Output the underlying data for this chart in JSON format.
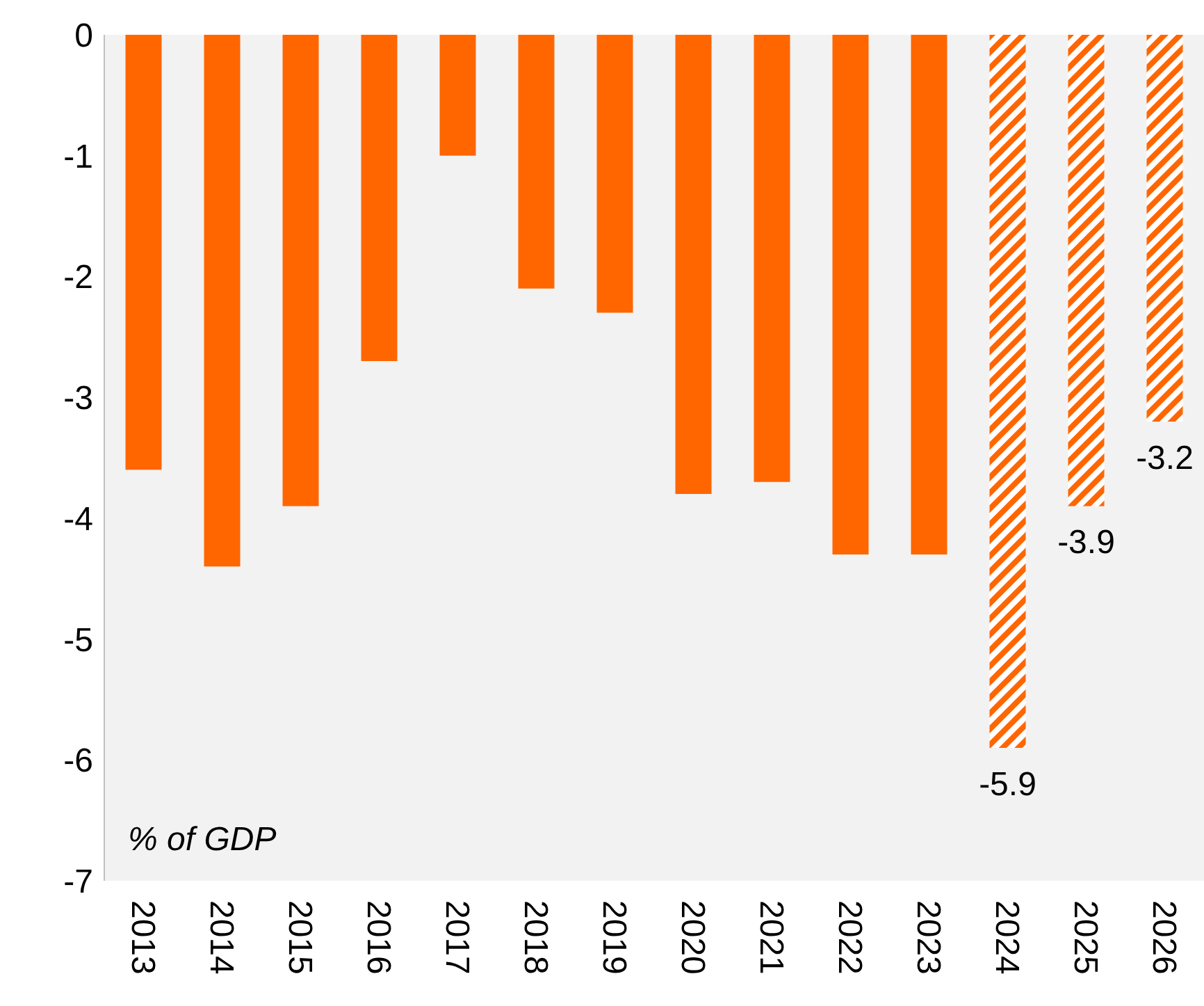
{
  "chart_data": {
    "type": "bar",
    "categories": [
      "2013",
      "2014",
      "2015",
      "2016",
      "2017",
      "2018",
      "2019",
      "2020",
      "2021",
      "2022",
      "2023",
      "2024",
      "2025",
      "2026"
    ],
    "values": [
      -3.6,
      -4.4,
      -3.9,
      -2.7,
      -1.0,
      -2.1,
      -2.3,
      -3.8,
      -3.7,
      -4.3,
      -4.3,
      -5.9,
      -3.9,
      -3.2
    ],
    "value_labels": [
      null,
      null,
      null,
      null,
      null,
      null,
      null,
      null,
      null,
      null,
      null,
      "-5.9",
      "-3.9",
      "-3.2"
    ],
    "color": "#ff6600",
    "ylim": [
      -7,
      0
    ],
    "yticks": [
      -7,
      -6,
      -5,
      -4,
      -3,
      -2,
      -1,
      0
    ],
    "annotations": [
      "% of GDP"
    ]
  }
}
